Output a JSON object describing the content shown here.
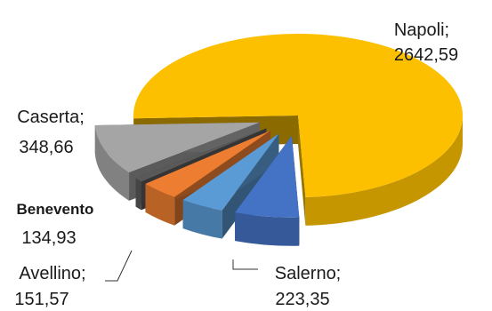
{
  "chart_data": {
    "type": "pie",
    "style": "3d-exploded",
    "legend": "none",
    "slices": [
      {
        "name": "Napoli",
        "value": 2642.59,
        "name_text": "Napoli;",
        "value_text": "2642,59",
        "color": "#FCC000"
      },
      {
        "name": "Salerno",
        "value": 223.35,
        "name_text": "Salerno;",
        "value_text": "223,35",
        "color": "#4472C4"
      },
      {
        "name": "Avellino",
        "value": 151.57,
        "name_text": "Avellino;",
        "value_text": "151,57",
        "color": "#5B9BD5"
      },
      {
        "name": "Benevento",
        "value": 134.93,
        "name_text": "Benevento",
        "value_text": "134,93",
        "color": "#ED7D31"
      },
      {
        "name": "Unlabeled",
        "value": 30,
        "name_text": "",
        "value_text": "",
        "color": "#595959"
      },
      {
        "name": "Caserta",
        "value": 348.66,
        "name_text": "Caserta;",
        "value_text": "348,66",
        "color": "#A5A5A5"
      }
    ]
  }
}
